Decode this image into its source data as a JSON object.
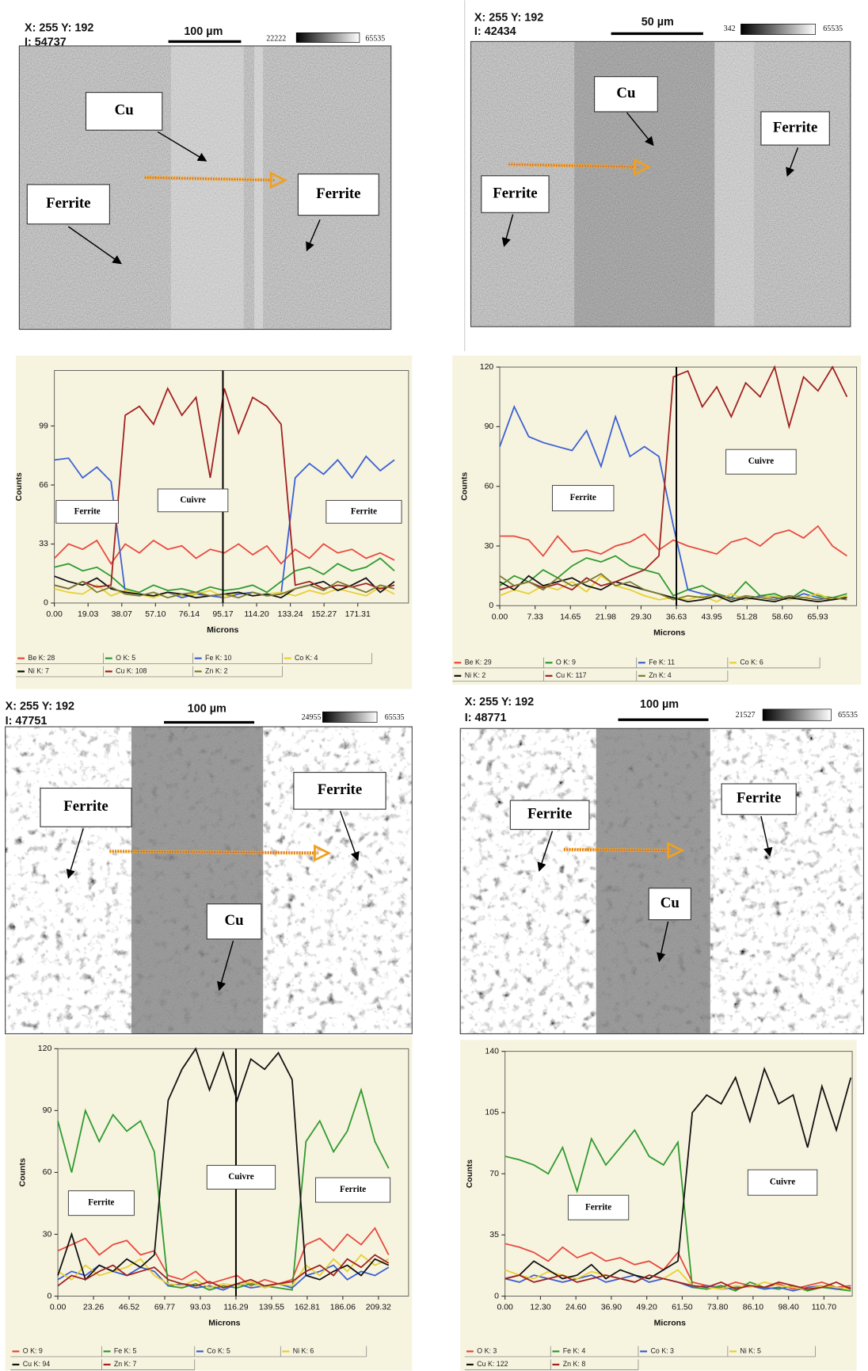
{
  "panels": [
    {
      "coords": "X: 255 Y: 192",
      "intensity": "I: 54737",
      "scale": "100 µm",
      "range_min": "22222",
      "range_max": "65535",
      "labels": [
        "Cu",
        "Ferrite",
        "Ferrite"
      ]
    },
    {
      "coords": "X: 255 Y: 192",
      "intensity": "I: 42434",
      "scale": "50 µm",
      "range_min": "342",
      "range_max": "65535",
      "labels": [
        "Cu",
        "Ferrite",
        "Ferrite"
      ]
    },
    {
      "coords": "X: 255 Y: 192",
      "intensity": "I: 47751",
      "scale": "100 µm",
      "range_min": "24955",
      "range_max": "65535",
      "labels": [
        "Ferrite",
        "Ferrite",
        "Cu"
      ]
    },
    {
      "coords": "X: 255 Y: 192",
      "intensity": "I: 48771",
      "scale": "100 µm",
      "range_min": "21527",
      "range_max": "65535",
      "labels": [
        "Ferrite",
        "Ferrite",
        "Cu"
      ]
    }
  ],
  "chart_data": [
    {
      "type": "line",
      "x_label": "Microns",
      "y_label": "Counts",
      "annotations": [
        "Ferrite",
        "Cuivre",
        "Ferrite"
      ],
      "cursor_x": 95.17,
      "xlim": [
        0,
        200
      ],
      "ylim": [
        0,
        130
      ],
      "grid": false,
      "xticks": [
        {
          "value": 0,
          "label": "0.00"
        },
        19.03,
        38.07,
        {
          "value": 57.1,
          "label": "57.10"
        },
        76.14,
        95.17,
        {
          "value": 114.2,
          "label": "114.20"
        },
        133.24,
        152.27,
        171.31
      ],
      "yticks": [
        0,
        33,
        66,
        99
      ],
      "x": [
        0,
        8,
        16,
        24,
        32,
        40,
        48,
        56,
        64,
        72,
        80,
        88,
        96,
        104,
        112,
        120,
        128,
        136,
        144,
        152,
        160,
        168,
        176,
        184,
        192
      ],
      "series": [
        {
          "name": "Be K: 28",
          "color": "#e8483c",
          "values": [
            25,
            33,
            30,
            35,
            22,
            33,
            28,
            35,
            30,
            32,
            25,
            30,
            28,
            33,
            27,
            32,
            22,
            30,
            25,
            33,
            28,
            30,
            25,
            28,
            24
          ]
        },
        {
          "name": "O K: 5",
          "color": "#2e9a2e",
          "values": [
            20,
            22,
            18,
            20,
            15,
            8,
            6,
            10,
            7,
            8,
            6,
            9,
            7,
            8,
            10,
            6,
            12,
            18,
            20,
            16,
            22,
            18,
            20,
            25,
            18
          ]
        },
        {
          "name": "Fe K: 10",
          "color": "#3b5fd4",
          "values": [
            80,
            81,
            70,
            76,
            68,
            6,
            5,
            4,
            6,
            3,
            5,
            4,
            3,
            5,
            6,
            4,
            5,
            70,
            78,
            72,
            80,
            70,
            82,
            74,
            80
          ]
        },
        {
          "name": "Co K: 4",
          "color": "#e8d030",
          "values": [
            8,
            6,
            5,
            10,
            4,
            7,
            5,
            3,
            6,
            4,
            5,
            7,
            3,
            6,
            4,
            5,
            6,
            4,
            7,
            5,
            8,
            6,
            4,
            9,
            5
          ]
        },
        {
          "name": "Ni K: 7",
          "color": "#111111",
          "values": [
            15,
            12,
            10,
            14,
            8,
            6,
            5,
            4,
            6,
            5,
            3,
            4,
            5,
            6,
            4,
            5,
            3,
            8,
            10,
            12,
            7,
            10,
            14,
            6,
            12
          ]
        },
        {
          "name": "Cu K: 108",
          "color": "#a02020",
          "values": [
            10,
            8,
            12,
            9,
            10,
            105,
            110,
            100,
            120,
            105,
            115,
            70,
            120,
            95,
            115,
            110,
            100,
            10,
            12,
            8,
            10,
            9,
            11,
            8,
            10
          ]
        },
        {
          "name": "Zn K: 2",
          "color": "#7a7a30",
          "values": [
            10,
            8,
            12,
            6,
            9,
            5,
            4,
            6,
            3,
            5,
            6,
            4,
            5,
            3,
            6,
            4,
            5,
            8,
            10,
            7,
            12,
            9,
            6,
            10,
            8
          ]
        }
      ]
    },
    {
      "type": "line",
      "x_label": "Microns",
      "y_label": "Counts",
      "annotations": [
        "Ferrite",
        "Cuivre"
      ],
      "cursor_x": 36.63,
      "xlim": [
        0,
        74
      ],
      "ylim": [
        0,
        120
      ],
      "grid": false,
      "xticks": [
        {
          "value": 0,
          "label": "0.00"
        },
        7.33,
        14.65,
        21.98,
        {
          "value": 29.3,
          "label": "29.30"
        },
        36.63,
        43.95,
        51.28,
        {
          "value": 58.6,
          "label": "58.60"
        },
        65.93
      ],
      "yticks": [
        0,
        30,
        60,
        90,
        120
      ],
      "x": [
        0,
        3,
        6,
        9,
        12,
        15,
        18,
        21,
        24,
        27,
        30,
        33,
        36,
        39,
        42,
        45,
        48,
        51,
        54,
        57,
        60,
        63,
        66,
        69,
        72
      ],
      "series": [
        {
          "name": "Be K: 29",
          "color": "#e8483c",
          "values": [
            35,
            35,
            33,
            25,
            35,
            27,
            28,
            26,
            30,
            32,
            36,
            28,
            33,
            30,
            28,
            26,
            32,
            34,
            30,
            36,
            38,
            34,
            40,
            30,
            25
          ]
        },
        {
          "name": "O K: 9",
          "color": "#2e9a2e",
          "values": [
            10,
            15,
            12,
            18,
            14,
            20,
            24,
            22,
            25,
            20,
            18,
            16,
            5,
            8,
            10,
            6,
            4,
            12,
            5,
            6,
            3,
            8,
            5,
            4,
            6
          ]
        },
        {
          "name": "Fe K: 11",
          "color": "#3b5fd4",
          "values": [
            80,
            100,
            85,
            82,
            80,
            78,
            88,
            70,
            95,
            75,
            80,
            75,
            40,
            8,
            6,
            5,
            4,
            3,
            5,
            4,
            3,
            6,
            4,
            3,
            5
          ]
        },
        {
          "name": "Co K: 6",
          "color": "#e8d030",
          "values": [
            5,
            8,
            6,
            10,
            8,
            12,
            7,
            15,
            10,
            8,
            5,
            3,
            4,
            3,
            5,
            2,
            6,
            3,
            4,
            5,
            3,
            4,
            6,
            3,
            5
          ]
        },
        {
          "name": "Ni K: 2",
          "color": "#111111",
          "values": [
            12,
            8,
            15,
            10,
            12,
            14,
            10,
            8,
            12,
            10,
            8,
            6,
            4,
            2,
            3,
            5,
            2,
            4,
            3,
            2,
            4,
            3,
            2,
            3,
            4
          ]
        },
        {
          "name": "Cu K: 117",
          "color": "#a02020",
          "values": [
            8,
            10,
            12,
            9,
            11,
            8,
            14,
            10,
            12,
            15,
            18,
            25,
            115,
            118,
            100,
            110,
            95,
            112,
            105,
            120,
            90,
            115,
            108,
            120,
            105
          ]
        },
        {
          "name": "Zn K: 4",
          "color": "#7a7a30",
          "values": [
            15,
            10,
            12,
            8,
            14,
            10,
            12,
            16,
            10,
            12,
            8,
            6,
            3,
            5,
            4,
            6,
            3,
            5,
            4,
            3,
            5,
            4,
            3,
            4,
            3
          ]
        }
      ]
    },
    {
      "type": "line",
      "x_label": "Microns",
      "y_label": "Counts",
      "annotations": [
        "Ferrite",
        "Cuivre",
        "Ferrite"
      ],
      "cursor_x": 116.29,
      "xlim": [
        0,
        229
      ],
      "ylim": [
        0,
        120
      ],
      "grid": false,
      "xticks": [
        {
          "value": 0,
          "label": "0.00"
        },
        23.26,
        46.52,
        69.77,
        93.03,
        116.29,
        139.55,
        162.81,
        186.06,
        209.32
      ],
      "yticks": [
        0,
        30,
        60,
        90,
        120
      ],
      "x": [
        0,
        9,
        18,
        27,
        36,
        45,
        54,
        63,
        72,
        81,
        90,
        99,
        108,
        117,
        126,
        135,
        144,
        153,
        162,
        171,
        180,
        189,
        198,
        207,
        216
      ],
      "series": [
        {
          "name": "O K: 9",
          "color": "#e8483c",
          "values": [
            22,
            25,
            28,
            20,
            25,
            27,
            20,
            22,
            10,
            8,
            12,
            6,
            8,
            10,
            5,
            8,
            6,
            8,
            25,
            28,
            22,
            30,
            25,
            33,
            20
          ]
        },
        {
          "name": "Fe K: 5",
          "color": "#2e9a2e",
          "values": [
            85,
            60,
            90,
            75,
            88,
            80,
            85,
            70,
            5,
            4,
            6,
            3,
            5,
            4,
            6,
            5,
            4,
            3,
            75,
            85,
            70,
            80,
            100,
            75,
            62
          ]
        },
        {
          "name": "Co K: 5",
          "color": "#3b5fd4",
          "values": [
            8,
            12,
            10,
            15,
            12,
            10,
            14,
            12,
            5,
            6,
            4,
            5,
            3,
            6,
            4,
            5,
            6,
            4,
            10,
            12,
            15,
            8,
            12,
            10,
            14
          ]
        },
        {
          "name": "Ni K: 6",
          "color": "#e8d030",
          "values": [
            12,
            8,
            15,
            10,
            12,
            14,
            18,
            10,
            6,
            5,
            8,
            4,
            6,
            5,
            7,
            4,
            6,
            5,
            15,
            10,
            18,
            12,
            20,
            15,
            18
          ]
        },
        {
          "name": "Cu K: 94",
          "color": "#111111",
          "values": [
            10,
            30,
            8,
            15,
            12,
            18,
            14,
            20,
            95,
            110,
            120,
            100,
            118,
            95,
            115,
            110,
            118,
            105,
            10,
            8,
            12,
            15,
            10,
            18,
            15
          ]
        },
        {
          "name": "Zn K: 7",
          "color": "#a02020",
          "values": [
            5,
            10,
            8,
            12,
            15,
            10,
            12,
            14,
            8,
            6,
            5,
            7,
            4,
            6,
            8,
            5,
            6,
            7,
            12,
            15,
            10,
            18,
            14,
            20,
            16
          ]
        }
      ]
    },
    {
      "type": "line",
      "x_label": "Microns",
      "y_label": "Counts",
      "annotations": [
        "Ferrite",
        "Cuivre"
      ],
      "xlim": [
        0,
        120.5
      ],
      "ylim": [
        0,
        140
      ],
      "grid": false,
      "xticks": [
        {
          "value": 0,
          "label": "0.00"
        },
        {
          "value": 12.3,
          "label": "12.30"
        },
        {
          "value": 24.6,
          "label": "24.60"
        },
        {
          "value": 36.9,
          "label": "36.90"
        },
        {
          "value": 49.2,
          "label": "49.20"
        },
        {
          "value": 61.5,
          "label": "61.50"
        },
        {
          "value": 73.8,
          "label": "73.80"
        },
        {
          "value": 86.1,
          "label": "86.10"
        },
        {
          "value": 98.4,
          "label": "98.40"
        },
        {
          "value": 110.7,
          "label": "110.70"
        }
      ],
      "yticks": [
        0,
        35,
        70,
        105,
        140
      ],
      "x": [
        0,
        5,
        10,
        15,
        20,
        25,
        30,
        35,
        40,
        45,
        50,
        55,
        60,
        65,
        70,
        75,
        80,
        85,
        90,
        95,
        100,
        105,
        110,
        115,
        120
      ],
      "series": [
        {
          "name": "O K: 3",
          "color": "#e8483c",
          "values": [
            30,
            28,
            25,
            20,
            28,
            22,
            25,
            20,
            22,
            18,
            20,
            15,
            25,
            8,
            6,
            5,
            8,
            6,
            5,
            7,
            4,
            6,
            8,
            5,
            6
          ]
        },
        {
          "name": "Fe K: 4",
          "color": "#2e9a2e",
          "values": [
            80,
            78,
            75,
            70,
            85,
            60,
            90,
            75,
            85,
            95,
            80,
            75,
            88,
            5,
            4,
            6,
            3,
            8,
            5,
            4,
            6,
            3,
            5,
            4,
            3
          ]
        },
        {
          "name": "Co K: 3",
          "color": "#3b5fd4",
          "values": [
            10,
            8,
            12,
            10,
            8,
            10,
            12,
            8,
            10,
            12,
            8,
            10,
            8,
            5,
            6,
            4,
            5,
            6,
            4,
            5,
            3,
            5,
            6,
            4,
            5
          ]
        },
        {
          "name": "Ni K: 5",
          "color": "#e8d030",
          "values": [
            15,
            12,
            10,
            14,
            12,
            10,
            14,
            12,
            10,
            8,
            12,
            10,
            15,
            6,
            5,
            4,
            6,
            5,
            8,
            6,
            5,
            4,
            6,
            5,
            4
          ]
        },
        {
          "name": "Cu K: 122",
          "color": "#111111",
          "values": [
            10,
            12,
            20,
            15,
            10,
            12,
            18,
            10,
            15,
            12,
            10,
            15,
            20,
            105,
            115,
            110,
            125,
            100,
            130,
            110,
            115,
            85,
            120,
            95,
            125
          ]
        },
        {
          "name": "Zn K: 8",
          "color": "#a02020",
          "values": [
            10,
            12,
            8,
            10,
            12,
            8,
            10,
            12,
            10,
            8,
            12,
            10,
            8,
            6,
            5,
            8,
            4,
            6,
            5,
            8,
            6,
            4,
            5,
            8,
            4
          ]
        }
      ]
    }
  ]
}
